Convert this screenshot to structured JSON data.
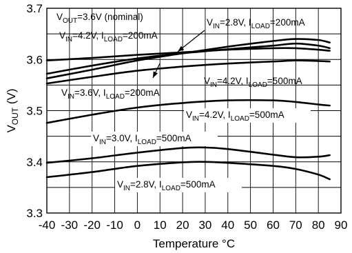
{
  "chart_data": {
    "type": "line",
    "title": "",
    "xlabel": "Temperature °C",
    "ylabel": "VOUT (V)",
    "xlim": [
      -40,
      90
    ],
    "ylim": [
      3.3,
      3.7
    ],
    "x_ticks": [
      "-40",
      "-30",
      "-20",
      "-10",
      "0",
      "10",
      "20",
      "30",
      "40",
      "50",
      "60",
      "70",
      "80",
      "90"
    ],
    "y_ticks": [
      "3.3",
      "3.4",
      "3.5",
      "3.6",
      "3.7"
    ],
    "grid": true,
    "annotations": [
      {
        "main": "V",
        "sub": "OUT",
        "rest": "=3.6V (nominal)"
      },
      {
        "main": "V",
        "sub": "IN",
        "rest": "=4.2V, I",
        "sub2": "LOAD",
        "rest2": "=200mA"
      },
      {
        "main": "V",
        "sub": "IN",
        "rest": "=2.8V, I",
        "sub2": "LOAD",
        "rest2": "=200mA"
      },
      {
        "main": "V",
        "sub": "IN",
        "rest": "=3.6V, I",
        "sub2": "LOAD",
        "rest2": "=200mA"
      },
      {
        "main": "V",
        "sub": "IN",
        "rest": "=4.2V, I",
        "sub2": "LOAD",
        "rest2": "=500mA"
      },
      {
        "main": "V",
        "sub": "IN",
        "rest": "=4.2V, I",
        "sub2": "LOAD",
        "rest2": "=500mA"
      },
      {
        "main": "V",
        "sub": "IN",
        "rest": "=3.0V, I",
        "sub2": "LOAD",
        "rest2": "=500mA"
      },
      {
        "main": "V",
        "sub": "IN",
        "rest": "=2.8V, I",
        "sub2": "LOAD",
        "rest2": "=500mA"
      }
    ],
    "series": [
      {
        "x": [
          -40,
          -20,
          0,
          20,
          40,
          60,
          70,
          80,
          85
        ],
        "y": [
          3.563,
          3.58,
          3.598,
          3.612,
          3.625,
          3.636,
          3.64,
          3.638,
          3.633
        ]
      },
      {
        "x": [
          -40,
          -20,
          0,
          20,
          40,
          60,
          70,
          80,
          85
        ],
        "y": [
          3.572,
          3.588,
          3.602,
          3.612,
          3.62,
          3.627,
          3.631,
          3.627,
          3.622
        ]
      },
      {
        "x": [
          -40,
          -20,
          0,
          20,
          40,
          60,
          70,
          80,
          85
        ],
        "y": [
          3.598,
          3.603,
          3.609,
          3.614,
          3.619,
          3.622,
          3.622,
          3.619,
          3.617
        ]
      },
      {
        "x": [
          -40,
          -20,
          0,
          20,
          40,
          60,
          70,
          80,
          85
        ],
        "y": [
          3.553,
          3.566,
          3.578,
          3.586,
          3.592,
          3.596,
          3.598,
          3.597,
          3.596
        ]
      },
      {
        "x": [
          -40,
          -20,
          0,
          20,
          40,
          60,
          70,
          80,
          85
        ],
        "y": [
          3.476,
          3.492,
          3.506,
          3.515,
          3.52,
          3.52,
          3.517,
          3.512,
          3.51
        ]
      },
      {
        "x": [
          -40,
          -20,
          0,
          20,
          30,
          40,
          60,
          70,
          80,
          85
        ],
        "y": [
          3.398,
          3.407,
          3.418,
          3.427,
          3.428,
          3.425,
          3.414,
          3.409,
          3.41,
          3.413
        ]
      },
      {
        "x": [
          -40,
          -20,
          0,
          20,
          30,
          40,
          60,
          70,
          80,
          85
        ],
        "y": [
          3.37,
          3.38,
          3.392,
          3.399,
          3.4,
          3.398,
          3.392,
          3.386,
          3.375,
          3.366
        ]
      }
    ]
  }
}
